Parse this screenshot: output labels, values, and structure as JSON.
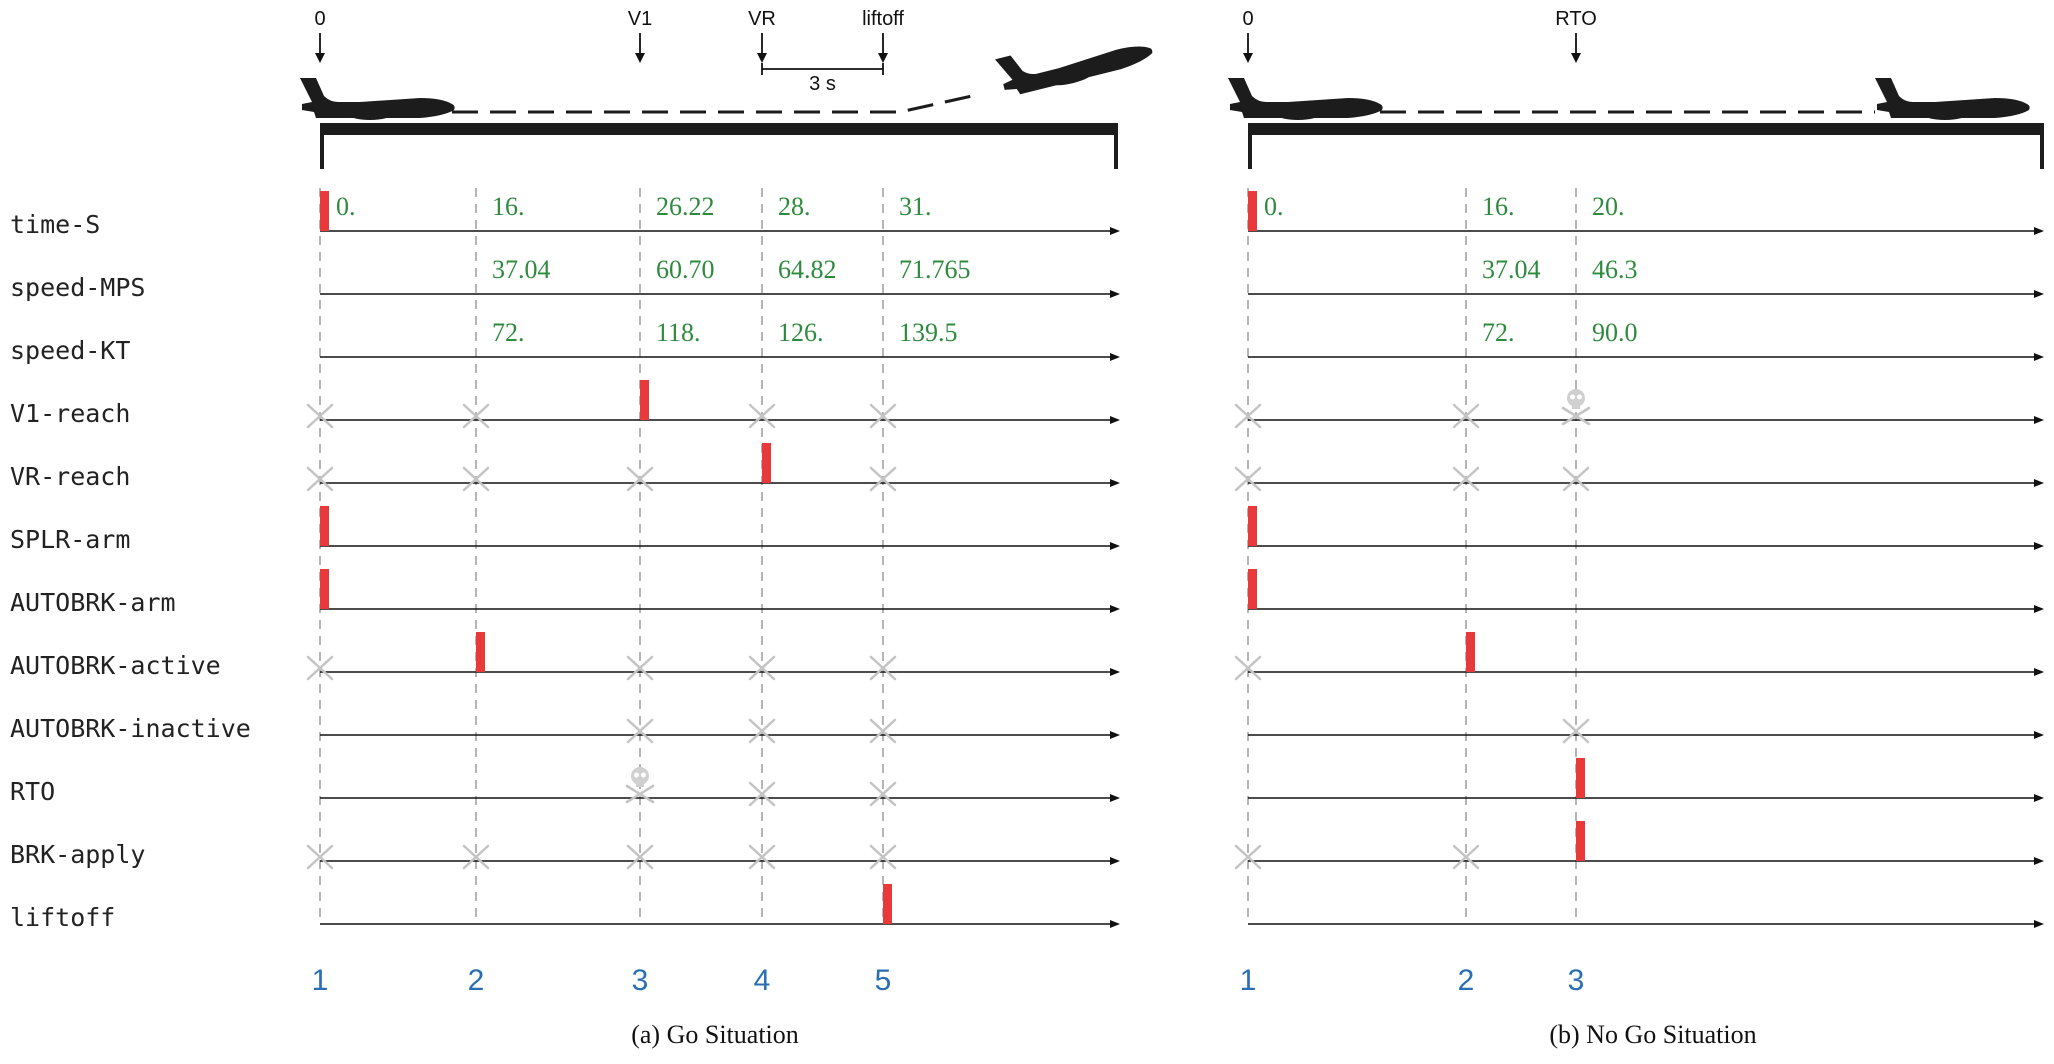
{
  "signals": [
    "time-S",
    "speed-MPS",
    "speed-KT",
    "V1-reach",
    "VR-reach",
    "SPLR-arm",
    "AUTOBRK-arm",
    "AUTOBRK-active",
    "AUTOBRK-inactive",
    "RTO",
    "BRK-apply",
    "liftoff"
  ],
  "panels": [
    {
      "id": "go",
      "caption": "(a) Go Situation",
      "steps": [
        "1",
        "2",
        "3",
        "4",
        "5"
      ],
      "top_markers": [
        {
          "label": "0",
          "step": 0
        },
        {
          "label": "V1",
          "step": 2
        },
        {
          "label": "VR",
          "step": 3
        },
        {
          "label": "liftoff",
          "step": 4
        }
      ],
      "interval": {
        "label": "3 s",
        "from_step": 3,
        "to_step": 4
      },
      "values": {
        "time-S": [
          "0.",
          "16.",
          "26.22",
          "28.",
          "31."
        ],
        "speed-MPS": [
          "",
          "37.04",
          "60.70",
          "64.82",
          "71.765"
        ],
        "speed-KT": [
          "",
          "72.",
          "118.",
          "126.",
          "139.5"
        ]
      },
      "pulses": {
        "time-S": [
          0
        ],
        "V1-reach": [
          2
        ],
        "VR-reach": [
          3
        ],
        "SPLR-arm": [
          0
        ],
        "AUTOBRK-arm": [
          0
        ],
        "AUTOBRK-active": [
          1
        ],
        "liftoff": [
          4
        ]
      },
      "absent": {
        "V1-reach": [
          0,
          1,
          3,
          4
        ],
        "VR-reach": [
          0,
          1,
          2,
          4
        ],
        "AUTOBRK-active": [
          0,
          2,
          3,
          4
        ],
        "AUTOBRK-inactive": [
          2,
          3,
          4
        ],
        "RTO": [
          3,
          4
        ],
        "BRK-apply": [
          0,
          1,
          2,
          3,
          4
        ]
      },
      "forbidden": {
        "RTO": [
          2
        ]
      }
    },
    {
      "id": "nogo",
      "caption": "(b) No Go Situation",
      "steps": [
        "1",
        "2",
        "3"
      ],
      "top_markers": [
        {
          "label": "0",
          "step": 0
        },
        {
          "label": "RTO",
          "step": 2
        }
      ],
      "values": {
        "time-S": [
          "0.",
          "16.",
          "20."
        ],
        "speed-MPS": [
          "",
          "37.04",
          "46.3"
        ],
        "speed-KT": [
          "",
          "72.",
          "90.0"
        ]
      },
      "pulses": {
        "time-S": [
          0
        ],
        "SPLR-arm": [
          0
        ],
        "AUTOBRK-arm": [
          0
        ],
        "AUTOBRK-active": [
          1
        ],
        "RTO": [
          2
        ],
        "BRK-apply": [
          2
        ]
      },
      "absent": {
        "V1-reach": [
          0,
          1
        ],
        "VR-reach": [
          0,
          1,
          2
        ],
        "AUTOBRK-active": [
          0
        ],
        "AUTOBRK-inactive": [
          2
        ],
        "BRK-apply": [
          0,
          1
        ]
      },
      "forbidden": {
        "V1-reach": [
          2
        ]
      }
    }
  ],
  "colors": {
    "pulse": "#e8393b",
    "value_text": "#2e8b3e",
    "step_number": "#2a6fb5",
    "absent_mark": "#c4c4c4",
    "guide_line": "#b5b5b5"
  },
  "icons": {
    "absent": "cross-icon",
    "forbidden": "skull-crossbones-icon",
    "aircraft": "airplane-icon"
  }
}
